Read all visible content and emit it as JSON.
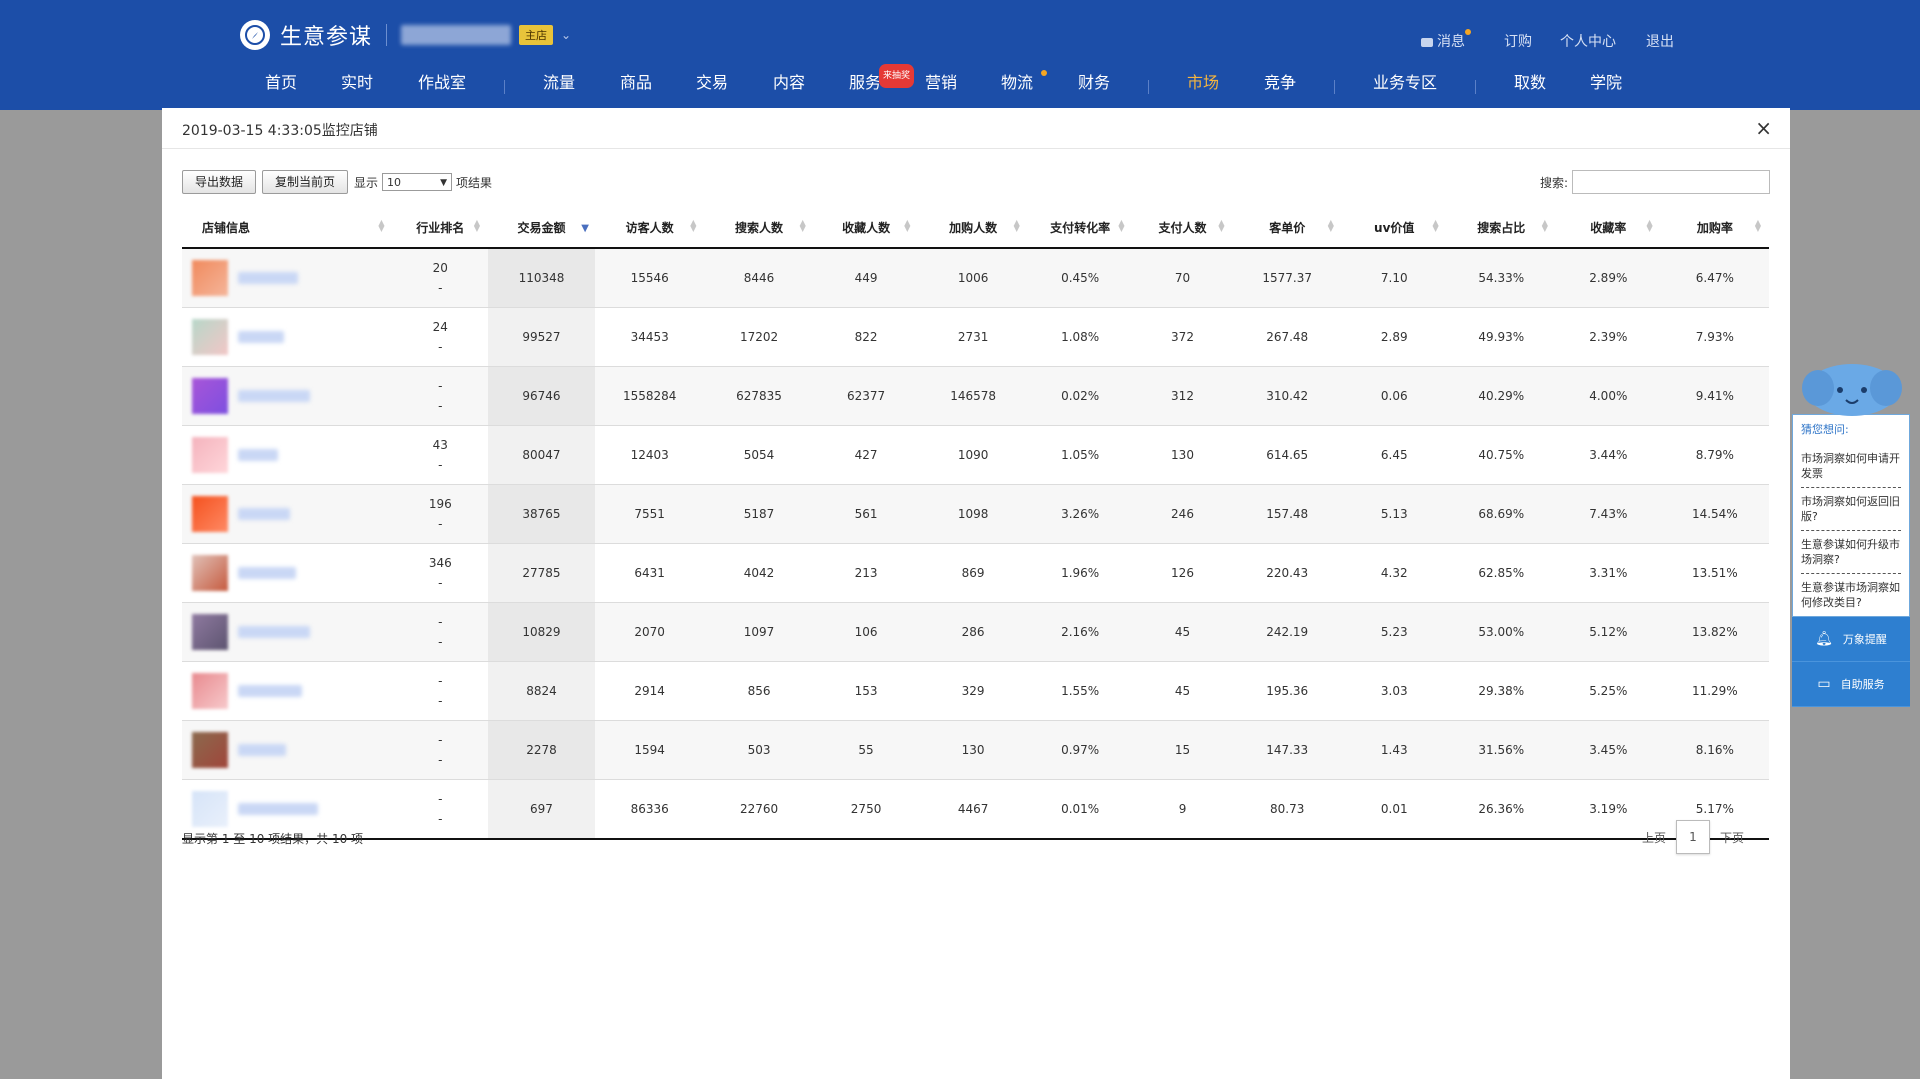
{
  "header": {
    "brand": "生意参谋",
    "shop_badge": "主店",
    "util": {
      "messages": "消息",
      "subscribe": "订购",
      "profile": "个人中心",
      "logout": "退出"
    },
    "nav": [
      "首页",
      "实时",
      "作战室",
      "流量",
      "商品",
      "交易",
      "内容",
      "服务",
      "营销",
      "物流",
      "财务",
      "市场",
      "竞争",
      "业务专区",
      "取数",
      "学院"
    ],
    "nav_active": "市场",
    "service_badge": "来抽奖"
  },
  "modal": {
    "title": "2019-03-15 4:33:05监控店铺",
    "close": "×",
    "export_label": "导出数据",
    "copy_label": "复制当前页",
    "show_label": "显示",
    "page_size": "10",
    "results_suffix": "项结果",
    "search_label": "搜索:",
    "search_value": "",
    "columns": [
      "店铺信息",
      "行业排名",
      "交易金额",
      "访客人数",
      "搜索人数",
      "收藏人数",
      "加购人数",
      "支付转化率",
      "支付人数",
      "客单价",
      "uv价值",
      "搜索占比",
      "收藏率",
      "加购率"
    ],
    "rows": [
      {
        "rank": "20",
        "rank2": "-",
        "amount": "110348",
        "visitors": "15546",
        "search": "8446",
        "fav": "449",
        "cart": "1006",
        "conv": "0.45%",
        "payers": "70",
        "aov": "1577.37",
        "uv": "7.10",
        "search_pct": "54.33%",
        "fav_rate": "2.89%",
        "cart_rate": "6.47%"
      },
      {
        "rank": "24",
        "rank2": "-",
        "amount": "99527",
        "visitors": "34453",
        "search": "17202",
        "fav": "822",
        "cart": "2731",
        "conv": "1.08%",
        "payers": "372",
        "aov": "267.48",
        "uv": "2.89",
        "search_pct": "49.93%",
        "fav_rate": "2.39%",
        "cart_rate": "7.93%"
      },
      {
        "rank": "-",
        "rank2": "-",
        "amount": "96746",
        "visitors": "1558284",
        "search": "627835",
        "fav": "62377",
        "cart": "146578",
        "conv": "0.02%",
        "payers": "312",
        "aov": "310.42",
        "uv": "0.06",
        "search_pct": "40.29%",
        "fav_rate": "4.00%",
        "cart_rate": "9.41%"
      },
      {
        "rank": "43",
        "rank2": "-",
        "amount": "80047",
        "visitors": "12403",
        "search": "5054",
        "fav": "427",
        "cart": "1090",
        "conv": "1.05%",
        "payers": "130",
        "aov": "614.65",
        "uv": "6.45",
        "search_pct": "40.75%",
        "fav_rate": "3.44%",
        "cart_rate": "8.79%"
      },
      {
        "rank": "196",
        "rank2": "-",
        "amount": "38765",
        "visitors": "7551",
        "search": "5187",
        "fav": "561",
        "cart": "1098",
        "conv": "3.26%",
        "payers": "246",
        "aov": "157.48",
        "uv": "5.13",
        "search_pct": "68.69%",
        "fav_rate": "7.43%",
        "cart_rate": "14.54%"
      },
      {
        "rank": "346",
        "rank2": "-",
        "amount": "27785",
        "visitors": "6431",
        "search": "4042",
        "fav": "213",
        "cart": "869",
        "conv": "1.96%",
        "payers": "126",
        "aov": "220.43",
        "uv": "4.32",
        "search_pct": "62.85%",
        "fav_rate": "3.31%",
        "cart_rate": "13.51%"
      },
      {
        "rank": "-",
        "rank2": "-",
        "amount": "10829",
        "visitors": "2070",
        "search": "1097",
        "fav": "106",
        "cart": "286",
        "conv": "2.16%",
        "payers": "45",
        "aov": "242.19",
        "uv": "5.23",
        "search_pct": "53.00%",
        "fav_rate": "5.12%",
        "cart_rate": "13.82%"
      },
      {
        "rank": "-",
        "rank2": "-",
        "amount": "8824",
        "visitors": "2914",
        "search": "856",
        "fav": "153",
        "cart": "329",
        "conv": "1.55%",
        "payers": "45",
        "aov": "195.36",
        "uv": "3.03",
        "search_pct": "29.38%",
        "fav_rate": "5.25%",
        "cart_rate": "11.29%"
      },
      {
        "rank": "-",
        "rank2": "-",
        "amount": "2278",
        "visitors": "1594",
        "search": "503",
        "fav": "55",
        "cart": "130",
        "conv": "0.97%",
        "payers": "15",
        "aov": "147.33",
        "uv": "1.43",
        "search_pct": "31.56%",
        "fav_rate": "3.45%",
        "cart_rate": "8.16%"
      },
      {
        "rank": "-",
        "rank2": "-",
        "amount": "697",
        "visitors": "86336",
        "search": "22760",
        "fav": "2750",
        "cart": "4467",
        "conv": "0.01%",
        "payers": "9",
        "aov": "80.73",
        "uv": "0.01",
        "search_pct": "26.36%",
        "fav_rate": "3.19%",
        "cart_rate": "5.17%"
      }
    ],
    "thumb_colors": [
      [
        "#f08a5d",
        "#f5b59a"
      ],
      [
        "#b7d7c9",
        "#f2c6c6"
      ],
      [
        "#a855d8",
        "#7d4fe0"
      ],
      [
        "#f4b3bd",
        "#ffd6da"
      ],
      [
        "#f4511e",
        "#ff8a65"
      ],
      [
        "#e0c1b8",
        "#c65a3e"
      ],
      [
        "#8f7aa0",
        "#5d5470"
      ],
      [
        "#e88a8f",
        "#f7c9cb"
      ],
      [
        "#8b6a4e",
        "#a0453a"
      ],
      [
        "#d6e4f8",
        "#e9f0fb"
      ]
    ],
    "name_widths": [
      60,
      46,
      72,
      40,
      52,
      58,
      72,
      64,
      48,
      80
    ],
    "footer_info": "显示第 1 至 10 项结果，共 10 项",
    "pager": {
      "prev": "上页",
      "current": "1",
      "next": "下页"
    }
  },
  "helper": {
    "question": "猜您想问:",
    "links": [
      "市场洞察如何申请开发票",
      "市场洞察如何返回旧版?",
      "生意参谋如何升级市场洞察?",
      "生意参谋市场洞察如何修改类目?"
    ],
    "alert_label": "万象提醒",
    "self_service_label": "自助服务"
  },
  "colors": {
    "header_bg": "#1c4ea8",
    "active_nav": "#f5b53f",
    "helper_blue": "#2e7fd0"
  }
}
